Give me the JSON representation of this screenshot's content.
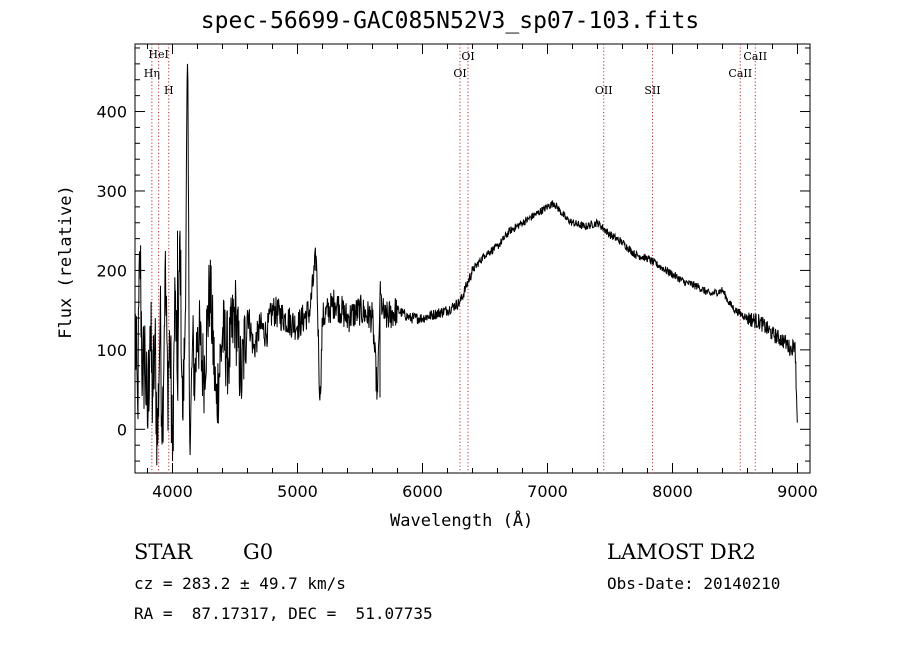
{
  "chart_data": {
    "type": "line",
    "title": "spec-56699-GAC085N52V3_sp07-103.fits",
    "xlabel": "Wavelength (Å)",
    "ylabel": "Flux (relative)",
    "xlim": [
      3700,
      9100
    ],
    "ylim": [
      -55,
      485
    ],
    "xticks": [
      4000,
      5000,
      6000,
      7000,
      8000,
      9000
    ],
    "yticks": [
      0,
      100,
      200,
      300,
      400
    ],
    "grid": false,
    "series": [
      {
        "x": [
          3700,
          3720,
          3740,
          3760,
          3780,
          3800,
          3820,
          3840,
          3860,
          3880,
          3900,
          3920,
          3940,
          3960,
          3980,
          4000,
          4020,
          4040,
          4060,
          4080,
          4100,
          4120,
          4140,
          4160,
          4180,
          4200,
          4250,
          4300,
          4350,
          4400,
          4450,
          4500,
          4550,
          4600,
          4650,
          4700,
          4750,
          4800,
          4900,
          5000,
          5100,
          5150,
          5180,
          5200,
          5300,
          5400,
          5500,
          5600,
          5640,
          5660,
          5680,
          5700,
          5800,
          5900,
          6000,
          6100,
          6200,
          6300,
          6350,
          6400,
          6500,
          6600,
          6700,
          6800,
          6900,
          7000,
          7050,
          7100,
          7150,
          7200,
          7300,
          7400,
          7500,
          7600,
          7700,
          7800,
          7850,
          7900,
          8000,
          8100,
          8200,
          8300,
          8400,
          8450,
          8500,
          8600,
          8700,
          8800,
          8900,
          8950,
          8980,
          9000
        ],
        "y": [
          140,
          20,
          230,
          60,
          100,
          0,
          130,
          40,
          100,
          -20,
          140,
          10,
          200,
          60,
          110,
          -40,
          180,
          50,
          250,
          10,
          120,
          460,
          -40,
          110,
          60,
          130,
          70,
          180,
          30,
          120,
          90,
          150,
          60,
          150,
          100,
          130,
          120,
          150,
          140,
          130,
          150,
          220,
          30,
          140,
          160,
          140,
          150,
          140,
          40,
          170,
          150,
          140,
          150,
          140,
          140,
          145,
          150,
          160,
          180,
          200,
          220,
          230,
          250,
          260,
          270,
          280,
          285,
          275,
          265,
          260,
          255,
          260,
          245,
          235,
          220,
          215,
          210,
          205,
          195,
          185,
          180,
          170,
          175,
          160,
          150,
          140,
          135,
          120,
          110,
          100,
          110,
          0
        ]
      }
    ],
    "lines": [
      {
        "label": "HeI",
        "x": 3889
      },
      {
        "label": "Hη",
        "x": 3835
      },
      {
        "label": "H",
        "x": 3970
      },
      {
        "label": "OI",
        "x": 6364
      },
      {
        "label": "OI",
        "x": 6300
      },
      {
        "label": "OII",
        "x": 7450
      },
      {
        "label": "SII",
        "x": 7840
      },
      {
        "label": "CaII",
        "x": 8662
      },
      {
        "label": "CaII",
        "x": 8542
      }
    ]
  },
  "info": {
    "object_type": "STAR",
    "subclass": "G0",
    "survey": "LAMOST DR2",
    "redshift": "cz = 283.2 ± 49.7 km/s",
    "obs_date": "Obs-Date: 20140210",
    "coords": "RA =  87.17317, DEC =  51.07735"
  }
}
